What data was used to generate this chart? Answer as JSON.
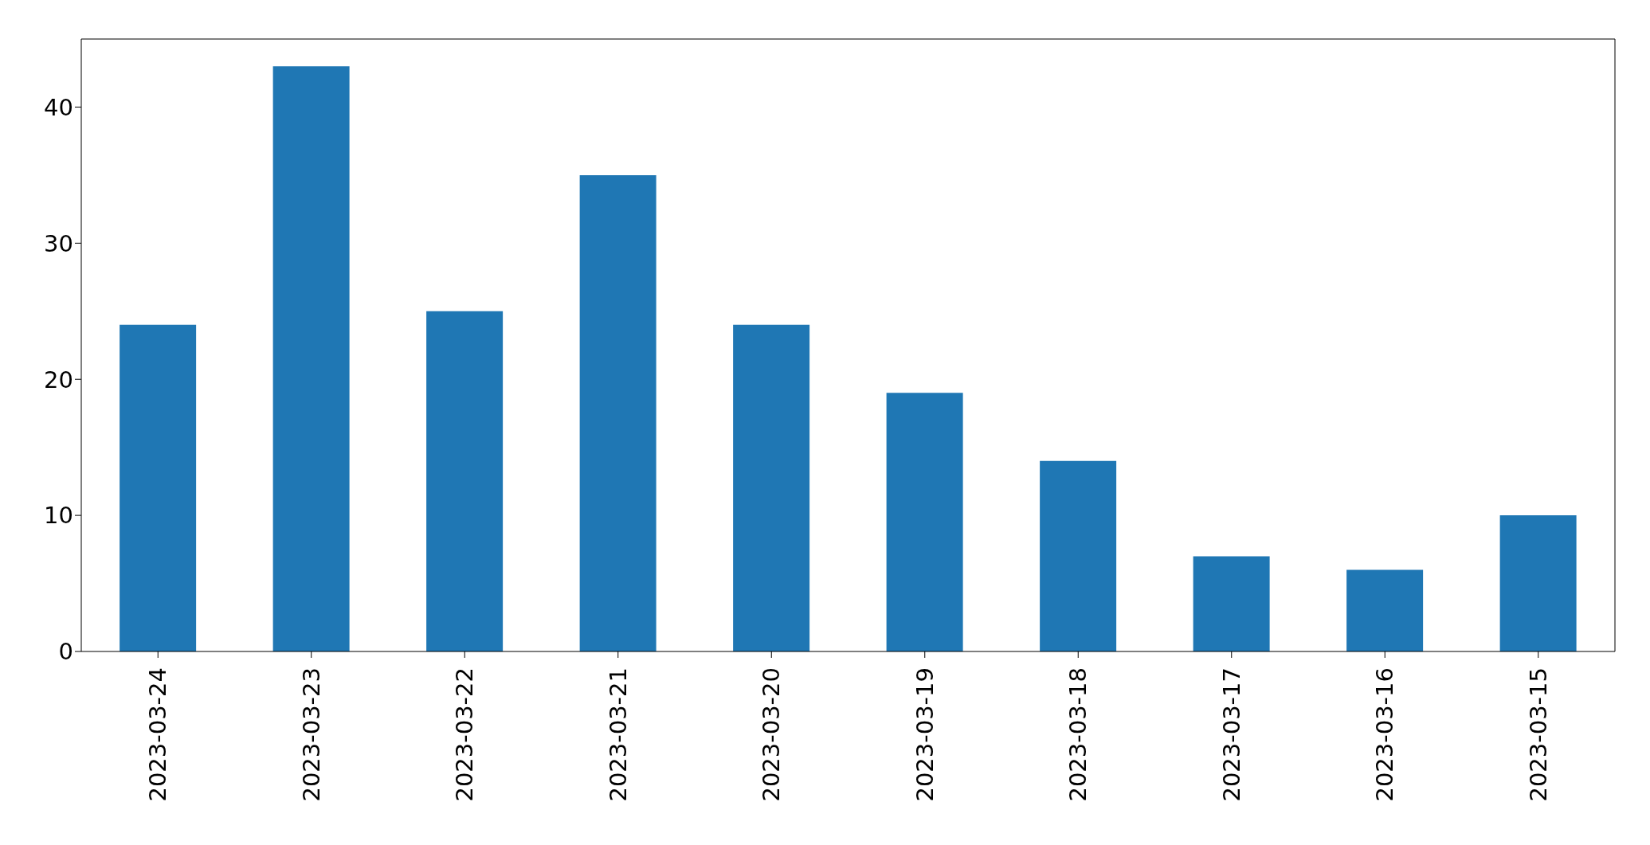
{
  "chart_data": {
    "type": "bar",
    "categories": [
      "2023-03-24",
      "2023-03-23",
      "2023-03-22",
      "2023-03-21",
      "2023-03-20",
      "2023-03-19",
      "2023-03-18",
      "2023-03-17",
      "2023-03-16",
      "2023-03-15"
    ],
    "values": [
      24,
      43,
      25,
      35,
      24,
      19,
      14,
      7,
      6,
      10
    ],
    "color": "#1f77b4",
    "ylim": [
      0,
      45
    ],
    "yticks": [
      0,
      10,
      20,
      30,
      40
    ],
    "grid": false,
    "legend": false
  }
}
